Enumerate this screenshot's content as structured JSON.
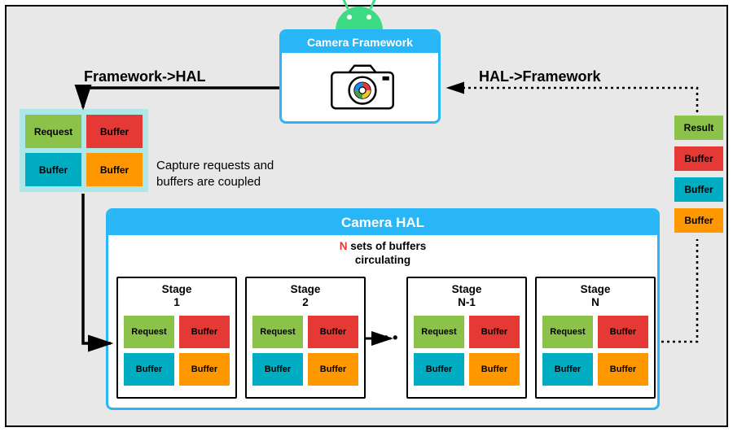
{
  "camera_framework": {
    "title": "Camera Framework"
  },
  "labels": {
    "fw_to_hal": "Framework->HAL",
    "hal_to_fw": "HAL->Framework",
    "coupled": "Capture requests and\nbuffers are coupled"
  },
  "request_group": {
    "bg": "#aee7e8",
    "chips": [
      {
        "text": "Request",
        "color": "#8bc34a"
      },
      {
        "text": "Buffer",
        "color": "#e53935"
      },
      {
        "text": "Buffer",
        "color": "#00acc1"
      },
      {
        "text": "Buffer",
        "color": "#ff9800"
      }
    ]
  },
  "result_stack": [
    {
      "text": "Result",
      "color": "#8bc34a"
    },
    {
      "text": "Buffer",
      "color": "#e53935"
    },
    {
      "text": "Buffer",
      "color": "#00acc1"
    },
    {
      "text": "Buffer",
      "color": "#ff9800"
    }
  ],
  "camera_hal": {
    "title": "Camera HAL",
    "sub_prefix": "N",
    "sub_rest": " sets of buffers\ncirculating",
    "stages": [
      {
        "label": "Stage\n1"
      },
      {
        "label": "Stage\n2"
      },
      {
        "label": "Stage\nN-1"
      },
      {
        "label": "Stage\nN"
      }
    ],
    "stage_chips": [
      {
        "text": "Request",
        "color": "#8bc34a"
      },
      {
        "text": "Buffer",
        "color": "#e53935"
      },
      {
        "text": "Buffer",
        "color": "#00acc1"
      },
      {
        "text": "Buffer",
        "color": "#ff9800"
      }
    ],
    "ellipsis": "• • •"
  },
  "colors": {
    "frame_blue": "#29b6f6",
    "bg": "#e8e8e8"
  }
}
